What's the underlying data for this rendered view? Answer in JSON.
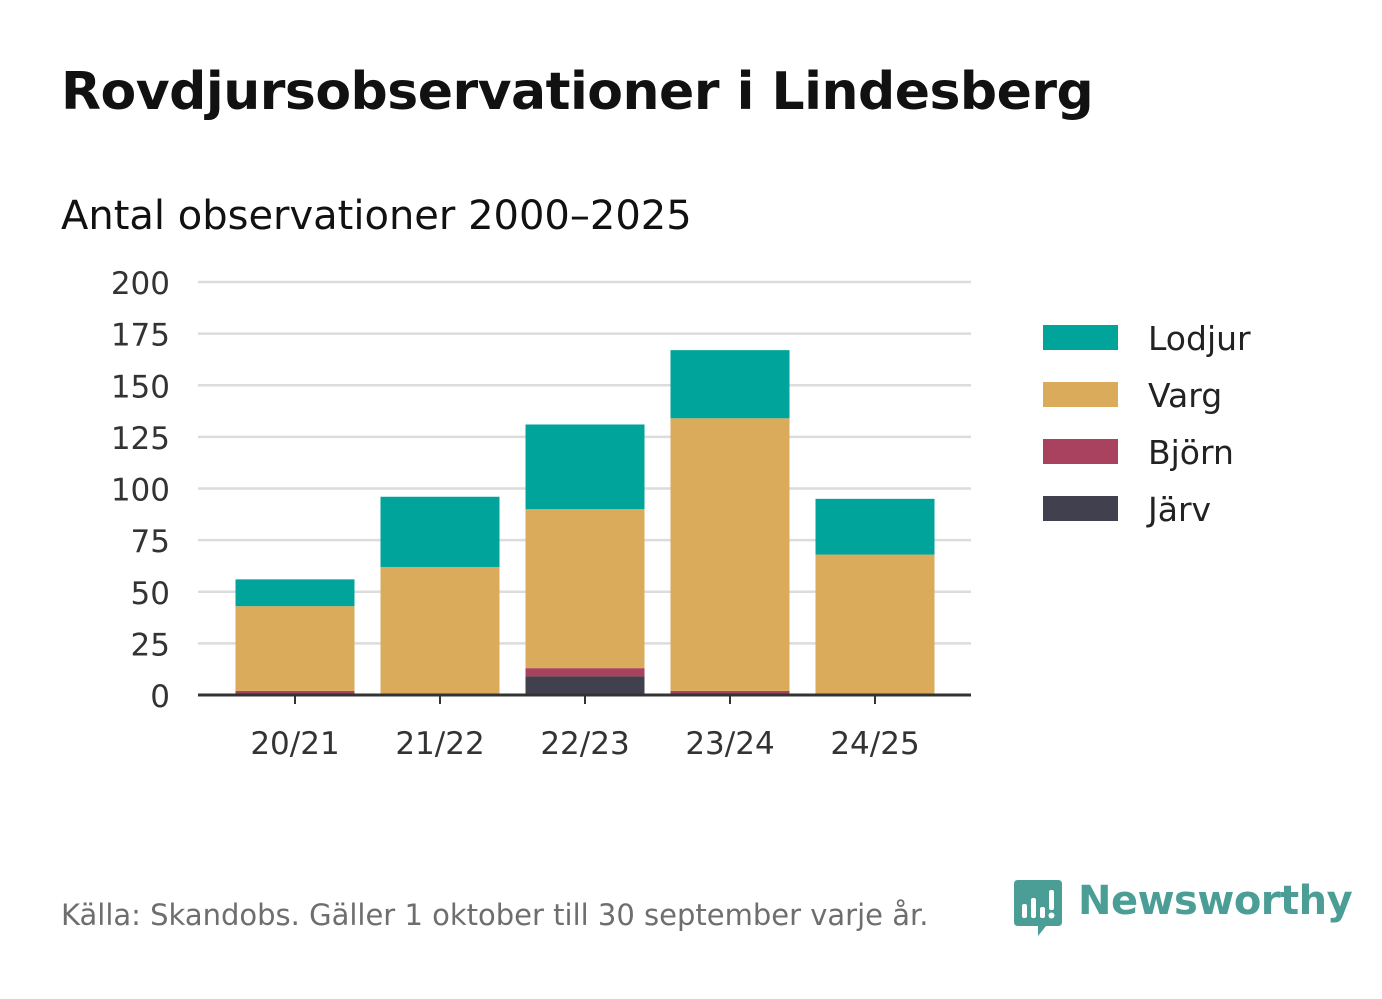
{
  "title": "Rovdjursobservationer i Lindesberg",
  "subtitle": "Antal observationer 2000–2025",
  "footer": "Källa: Skandobs. Gäller 1 oktober till 30 september varje år.",
  "brand": {
    "name": "Newsworthy",
    "color": "#4a9e96"
  },
  "chart_data": {
    "type": "bar",
    "stacked": true,
    "title": "Antal observationer 2000–2025",
    "xlabel": "",
    "ylabel": "",
    "ylim": [
      0,
      200
    ],
    "yticks": [
      0,
      25,
      50,
      75,
      100,
      125,
      150,
      175,
      200
    ],
    "categories": [
      "20/21",
      "21/22",
      "22/23",
      "23/24",
      "24/25"
    ],
    "legend_position": "right",
    "grid": true,
    "series": [
      {
        "name": "Järv",
        "color": "#41404f",
        "values": [
          0,
          0,
          9,
          0,
          0
        ]
      },
      {
        "name": "Björn",
        "color": "#a8425e",
        "values": [
          2,
          0,
          4,
          2,
          0
        ]
      },
      {
        "name": "Varg",
        "color": "#d9ab5a",
        "values": [
          41,
          62,
          77,
          132,
          68
        ]
      },
      {
        "name": "Lodjur",
        "color": "#00a49b",
        "values": [
          13,
          34,
          41,
          33,
          27
        ]
      }
    ],
    "legend_order": [
      "Lodjur",
      "Varg",
      "Björn",
      "Järv"
    ]
  }
}
